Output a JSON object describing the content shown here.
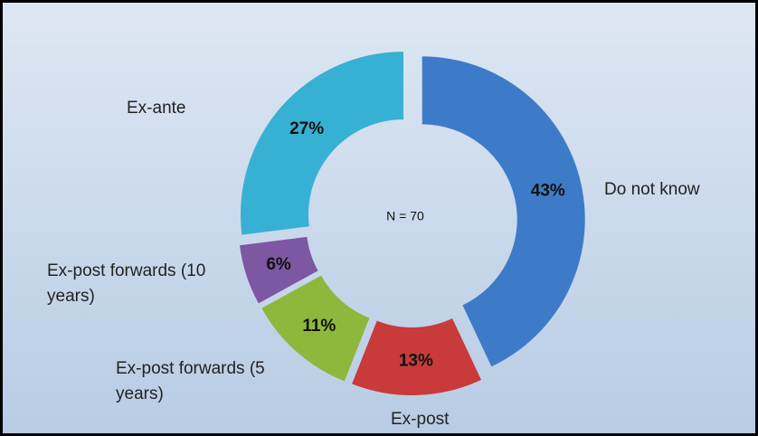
{
  "chart_data": {
    "type": "donut",
    "annotation": "N = 70",
    "categories": [
      "Do not know",
      "Ex-post",
      "Ex-post forwards (5 years)",
      "Ex-post forwards (10 years)",
      "Ex-ante"
    ],
    "values": [
      43,
      13,
      11,
      6,
      27
    ],
    "value_labels": [
      "43%",
      "13%",
      "11%",
      "6%",
      "27%"
    ],
    "colors": [
      "#3d7bc8",
      "#c93a3a",
      "#8db83c",
      "#7d57a2",
      "#36b1d4"
    ]
  }
}
